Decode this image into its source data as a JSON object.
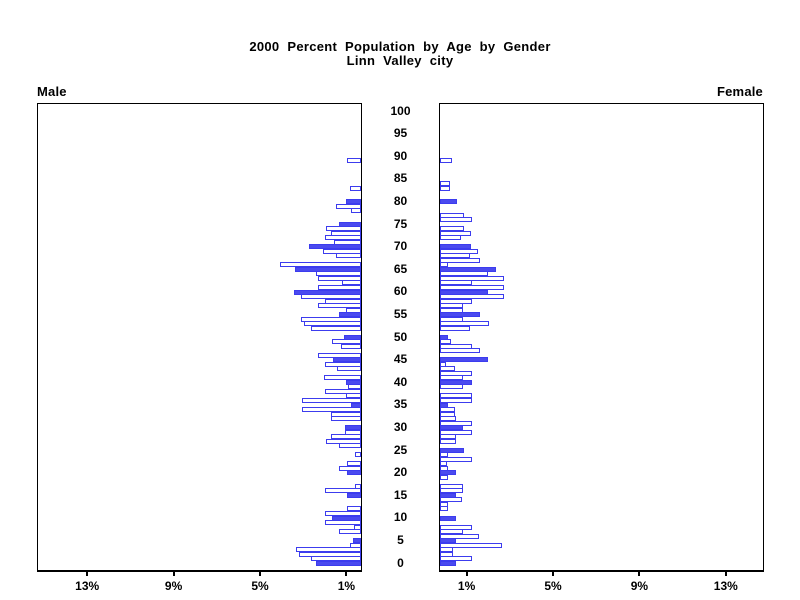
{
  "title": {
    "line1": "2000 Percent Population by Age by Gender",
    "line2": "Linn Valley city"
  },
  "panels": {
    "male_label": "Male",
    "female_label": "Female"
  },
  "axis": {
    "age_tick_step": 5,
    "age_tick_labels": [
      "0",
      "5",
      "10",
      "15",
      "20",
      "25",
      "30",
      "35",
      "40",
      "45",
      "50",
      "55",
      "60",
      "65",
      "70",
      "75",
      "80",
      "85",
      "90",
      "95",
      "100"
    ],
    "pct_ticks_left": [
      {
        "label": "13%",
        "value": 13
      },
      {
        "label": "9%",
        "value": 9
      },
      {
        "label": "5%",
        "value": 5
      },
      {
        "label": "1%",
        "value": 1
      }
    ],
    "pct_ticks_right": [
      {
        "label": "1%",
        "value": 1
      },
      {
        "label": "5%",
        "value": 5
      },
      {
        "label": "9%",
        "value": 9
      },
      {
        "label": "13%",
        "value": 13
      }
    ]
  },
  "colors": {
    "bar_fill_blue": "#4a4aef",
    "bar_outline_blue": "#3c3cee",
    "axis_black": "#000000"
  },
  "chart_data": {
    "type": "bar",
    "subtype": "population-pyramid",
    "title": "2000 Percent Population by Age by Gender — Linn Valley city",
    "unit": "percent of population",
    "orientation": "horizontal, male bars extend left, female bars extend right",
    "age_min": 0,
    "age_max": 100,
    "x_range_pct": [
      0,
      15
    ],
    "highlight_rule": "bars for ages divisible by 5 are solid blue; all other ages are white with blue outline",
    "series": [
      {
        "name": "Male",
        "side": "left",
        "values_by_age": [
          2.07,
          2.33,
          2.86,
          3.02,
          0.5,
          0.38,
          0,
          1.04,
          0.31,
          1.66,
          1.33,
          1.66,
          0.64,
          0,
          0,
          0.64,
          1.66,
          0.3,
          0,
          0,
          0.64,
          1.04,
          0.64,
          0,
          0.3,
          0,
          1.0,
          1.6,
          1.4,
          0.74,
          0.74,
          0,
          1.4,
          1.4,
          2.74,
          0.47,
          2.74,
          0.7,
          1.66,
          0.6,
          0.7,
          1.7,
          0,
          1.1,
          1.66,
          1.3,
          1.98,
          0,
          0.92,
          1.33,
          0.78,
          0,
          2.3,
          2.62,
          2.77,
          1.0,
          0.7,
          2.0,
          1.66,
          2.77,
          3.08,
          2.0,
          0.9,
          2.0,
          2.08,
          3.05,
          3.77,
          0,
          1.14,
          1.75,
          2.4,
          1.24,
          1.66,
          1.4,
          1.6,
          1.04,
          0,
          0,
          0.47,
          1.18,
          0.71,
          0,
          0,
          0.5,
          0,
          0,
          0,
          0,
          0,
          0.64,
          0,
          0,
          0,
          0,
          0,
          0,
          0,
          0,
          0,
          0,
          0
        ]
      },
      {
        "name": "Female",
        "side": "right",
        "values_by_age": [
          0.74,
          1.46,
          0.6,
          0.6,
          2.88,
          0.74,
          1.8,
          1.07,
          1.46,
          0,
          0.74,
          0,
          0.38,
          0.38,
          1.0,
          0.74,
          1.07,
          1.07,
          0,
          0.38,
          0.74,
          0.38,
          0.31,
          1.46,
          0.38,
          1.12,
          0,
          0.74,
          0.74,
          1.46,
          1.07,
          1.46,
          0.74,
          0.7,
          0.7,
          0.38,
          1.46,
          1.46,
          0,
          1.07,
          1.46,
          1.07,
          1.46,
          0.7,
          0.3,
          2.2,
          0,
          1.84,
          1.46,
          0.5,
          0.38,
          0,
          1.4,
          2.25,
          1.07,
          1.84,
          1.05,
          1.05,
          1.5,
          2.94,
          2.2,
          2.94,
          1.46,
          2.94,
          2.2,
          2.6,
          0.38,
          1.84,
          1.38,
          1.75,
          1.43,
          0,
          0.95,
          1.43,
          1.1,
          0,
          1.47,
          1.1,
          0,
          0,
          0.78,
          0,
          0,
          0.46,
          0.46,
          0,
          0,
          0,
          0,
          0.55,
          0,
          0,
          0,
          0,
          0,
          0,
          0,
          0,
          0,
          0,
          0
        ]
      }
    ]
  }
}
